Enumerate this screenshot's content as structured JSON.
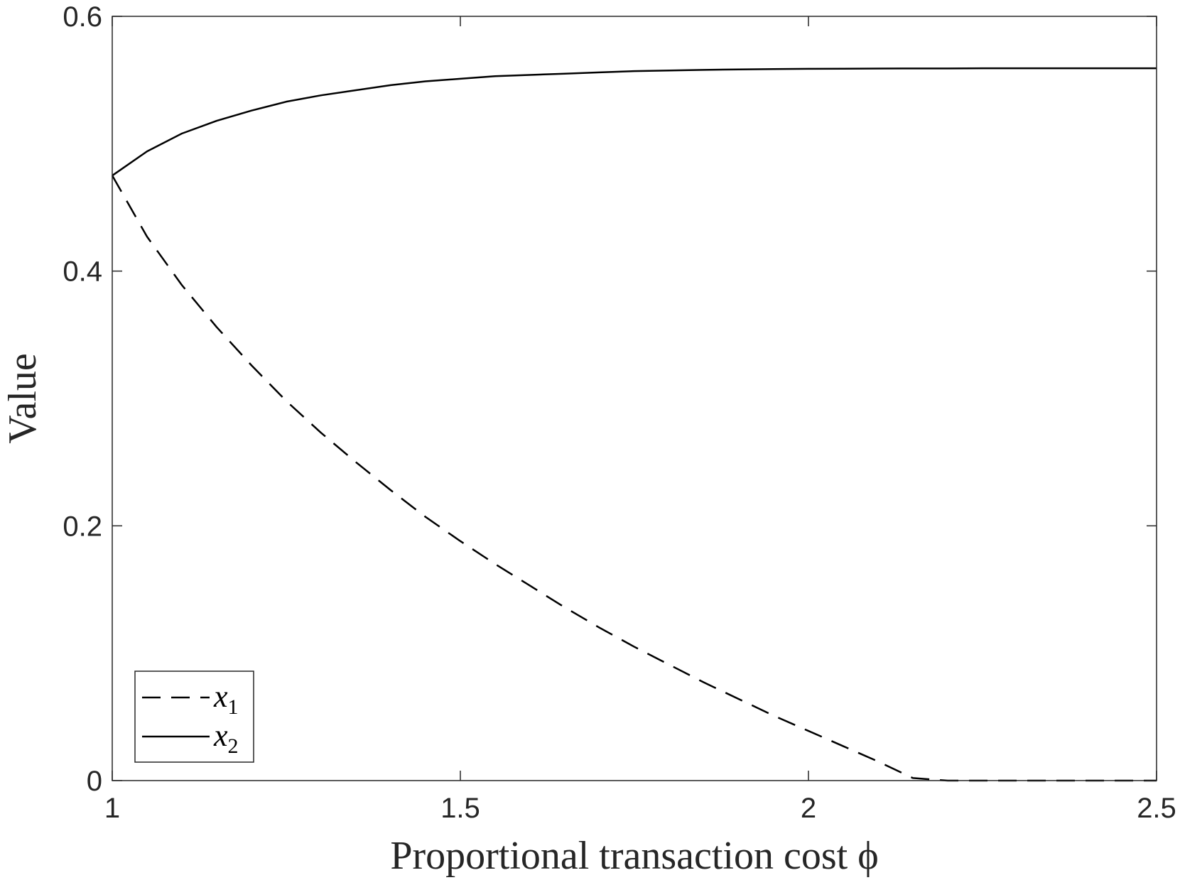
{
  "chart_data": {
    "type": "line",
    "title": "",
    "xlabel": "Proportional transaction cost ϕ",
    "ylabel": "Value",
    "xlim": [
      1,
      2.5
    ],
    "ylim": [
      0,
      0.6
    ],
    "xticks": [
      1,
      1.5,
      2,
      2.5
    ],
    "xtick_labels": [
      "1",
      "1.5",
      "2",
      "2.5"
    ],
    "yticks": [
      0,
      0.2,
      0.4,
      0.6
    ],
    "ytick_labels": [
      "0",
      "0.2",
      "0.4",
      "0.6"
    ],
    "grid": false,
    "legend_position": "bottom-left",
    "colors": {
      "line": "#000000",
      "axis": "#262626",
      "legend_box": "#262626"
    },
    "series": [
      {
        "name": "x1",
        "legend_base": "x",
        "legend_sub": "1",
        "style": "dashed",
        "x": [
          1.0,
          1.05,
          1.1,
          1.15,
          1.2,
          1.25,
          1.3,
          1.35,
          1.4,
          1.45,
          1.5,
          1.55,
          1.6,
          1.65,
          1.7,
          1.75,
          1.8,
          1.85,
          1.9,
          1.95,
          2.0,
          2.05,
          2.1,
          2.15,
          2.2,
          2.25,
          2.3,
          2.35,
          2.4,
          2.45,
          2.5
        ],
        "y": [
          0.475,
          0.427,
          0.389,
          0.356,
          0.326,
          0.298,
          0.273,
          0.25,
          0.228,
          0.207,
          0.188,
          0.17,
          0.153,
          0.136,
          0.12,
          0.105,
          0.091,
          0.077,
          0.064,
          0.051,
          0.039,
          0.027,
          0.015,
          0.002,
          0.0,
          0.0,
          0.0,
          0.0,
          0.0,
          0.0,
          0.0
        ]
      },
      {
        "name": "x2",
        "legend_base": "x",
        "legend_sub": "2",
        "style": "solid",
        "x": [
          1.0,
          1.05,
          1.1,
          1.15,
          1.2,
          1.25,
          1.3,
          1.35,
          1.4,
          1.45,
          1.5,
          1.55,
          1.6,
          1.65,
          1.7,
          1.75,
          1.8,
          1.85,
          1.9,
          1.95,
          2.0,
          2.05,
          2.1,
          2.15,
          2.2,
          2.25,
          2.3,
          2.35,
          2.4,
          2.45,
          2.5
        ],
        "y": [
          0.475,
          0.494,
          0.508,
          0.518,
          0.526,
          0.533,
          0.538,
          0.542,
          0.546,
          0.549,
          0.551,
          0.553,
          0.554,
          0.555,
          0.556,
          0.557,
          0.5575,
          0.558,
          0.5583,
          0.5586,
          0.5588,
          0.5589,
          0.559,
          0.5591,
          0.5591,
          0.5592,
          0.5592,
          0.5592,
          0.5592,
          0.5592,
          0.5592
        ]
      }
    ]
  }
}
